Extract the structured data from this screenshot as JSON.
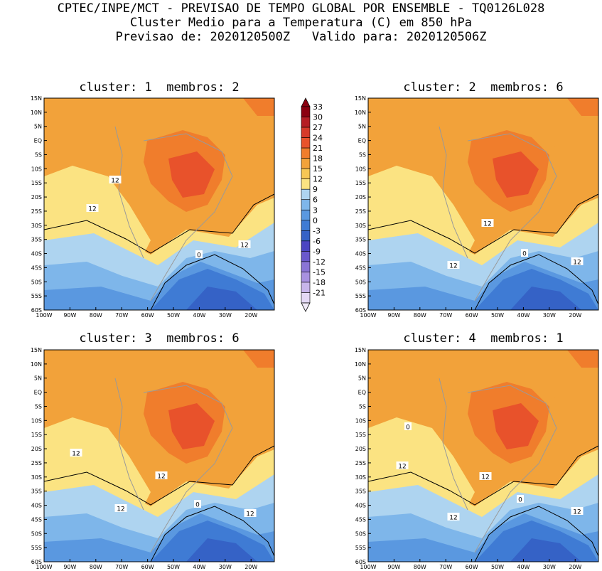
{
  "header": {
    "line1": "CPTEC/INPE/MCT - PREVISAO DE TEMPO GLOBAL POR ENSEMBLE - TQ0126L028",
    "line2": "Cluster Medio para a Temperatura (C) em 850 hPa",
    "line3": "Previsao de: 2020120500Z   Valido para: 2020120506Z"
  },
  "panels": [
    {
      "title": "cluster: 1  membros: 2",
      "contour_labels": [
        "12",
        "12",
        "12",
        "0"
      ]
    },
    {
      "title": "cluster: 2  membros: 6",
      "contour_labels": [
        "12",
        "12",
        "12",
        "0"
      ]
    },
    {
      "title": "cluster: 3  membros: 6",
      "contour_labels": [
        "12",
        "12",
        "12",
        "12",
        "0"
      ]
    },
    {
      "title": "cluster: 4  membros: 1",
      "contour_labels": [
        "12",
        "12",
        "12",
        "12",
        "0",
        "0"
      ]
    }
  ],
  "lat_ticks": [
    "15N",
    "10N",
    "5N",
    "EQ",
    "5S",
    "10S",
    "15S",
    "20S",
    "25S",
    "30S",
    "35S",
    "40S",
    "45S",
    "50S",
    "55S",
    "60S"
  ],
  "lon_ticks": [
    "100W",
    "90W",
    "80W",
    "70W",
    "60W",
    "50W",
    "40W",
    "30W",
    "20W"
  ],
  "colorbar": {
    "labels": [
      "33",
      "30",
      "27",
      "24",
      "21",
      "18",
      "15",
      "12",
      "9",
      "6",
      "3",
      "0",
      "-3",
      "-6",
      "-9",
      "-12",
      "-15",
      "-18",
      "-21"
    ],
    "colors": [
      "#8b0010",
      "#b51d24",
      "#d63a2a",
      "#e8522b",
      "#f07d2c",
      "#f2a23a",
      "#f7c755",
      "#fbe382",
      "#aed4f0",
      "#7eb6ea",
      "#5a98e0",
      "#3f7bd4",
      "#3562c6",
      "#4b45c2",
      "#6a58cc",
      "#8a74d6",
      "#a891e0",
      "#c7b5ea",
      "#e3d8f4"
    ]
  }
}
